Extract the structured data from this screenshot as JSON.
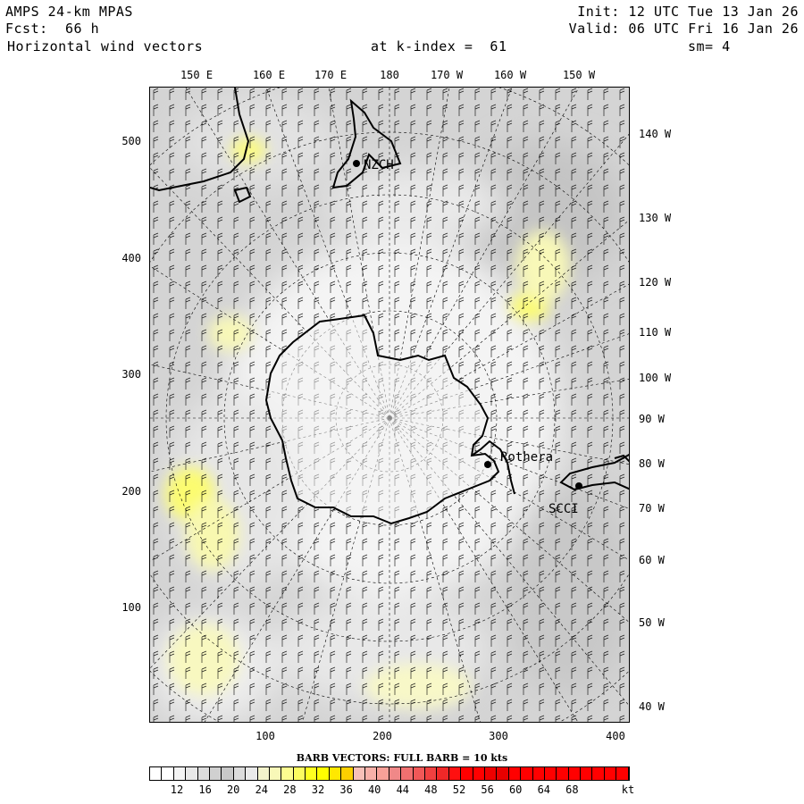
{
  "header": {
    "model": "AMPS 24-km MPAS",
    "fcst_label": "Fcst:",
    "fcst_value": "66 h",
    "field": "Horizontal wind vectors",
    "init": "Init: 12 UTC Tue 13 Jan 26",
    "valid": "Valid: 06 UTC Fri 16 Jan 26",
    "kindex": "at k-index =  61",
    "sm": "sm= 4"
  },
  "top_lon_labels": [
    "150 E",
    "160 E",
    "170 E",
    "180",
    "170 W",
    "160 W",
    "150 W"
  ],
  "right_lon_labels": [
    "140 W",
    "130 W",
    "120 W",
    "110 W",
    "100 W",
    "90 W",
    "80 W",
    "70 W",
    "60 W",
    "50 W",
    "40 W"
  ],
  "left_y_labels": [
    "500",
    "400",
    "300",
    "200",
    "100"
  ],
  "bottom_x_labels": [
    "100",
    "200",
    "300",
    "400"
  ],
  "stations": [
    "NZCH",
    "Rothera",
    "SCCI"
  ],
  "scale_title": "BARB VECTORS:  FULL BARB = 10 kts",
  "colorbar": {
    "labels": [
      "12",
      "16",
      "20",
      "24",
      "28",
      "32",
      "36",
      "40",
      "44",
      "48",
      "52",
      "56",
      "60",
      "64",
      "68",
      "kt"
    ],
    "colors": [
      "#ffffff",
      "#ffffff",
      "#f4f4f4",
      "#e8e8e8",
      "#dcdcdc",
      "#d0d0d0",
      "#c8c8c8",
      "#dcdcdc",
      "#eaeaea",
      "#f4f4cc",
      "#f8f8b8",
      "#fcfc90",
      "#fcfc60",
      "#ffff20",
      "#ffff00",
      "#ffe800",
      "#fcd000",
      "#f8c0b8",
      "#f8b0a8",
      "#f8a098",
      "#f08888",
      "#f07070",
      "#f05858",
      "#f04040",
      "#f02828",
      "#ff1010",
      "#ff0000",
      "#ff0000",
      "#ee0000",
      "#e80000",
      "#ff0000",
      "#ff0000",
      "#ff0000",
      "#ff0000",
      "#ff0000",
      "#ff0000",
      "#ff0000",
      "#ff0000",
      "#ff0000",
      "#ff0000"
    ]
  }
}
